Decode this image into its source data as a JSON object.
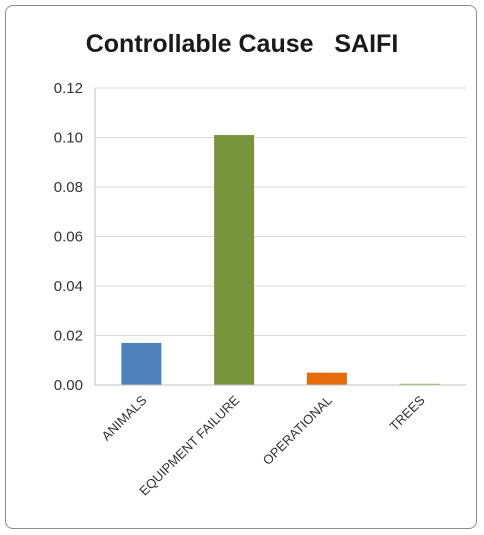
{
  "chart_data": {
    "type": "bar",
    "title": "Controllable Cause   SAIFI",
    "xlabel": "",
    "ylabel": "",
    "categories": [
      "ANIMALS",
      "EQUIPMENT FAILURE",
      "OPERATIONAL",
      "TREES"
    ],
    "values": [
      0.017,
      0.101,
      0.005,
      0.0005
    ],
    "colors": [
      "#4f81bd",
      "#77933c",
      "#e46c0a",
      "#9bbb59"
    ],
    "ylim": [
      0,
      0.12
    ],
    "yticks": [
      "0.00",
      "0.02",
      "0.04",
      "0.06",
      "0.08",
      "0.10",
      "0.12"
    ],
    "grid": true,
    "legend": "none"
  }
}
